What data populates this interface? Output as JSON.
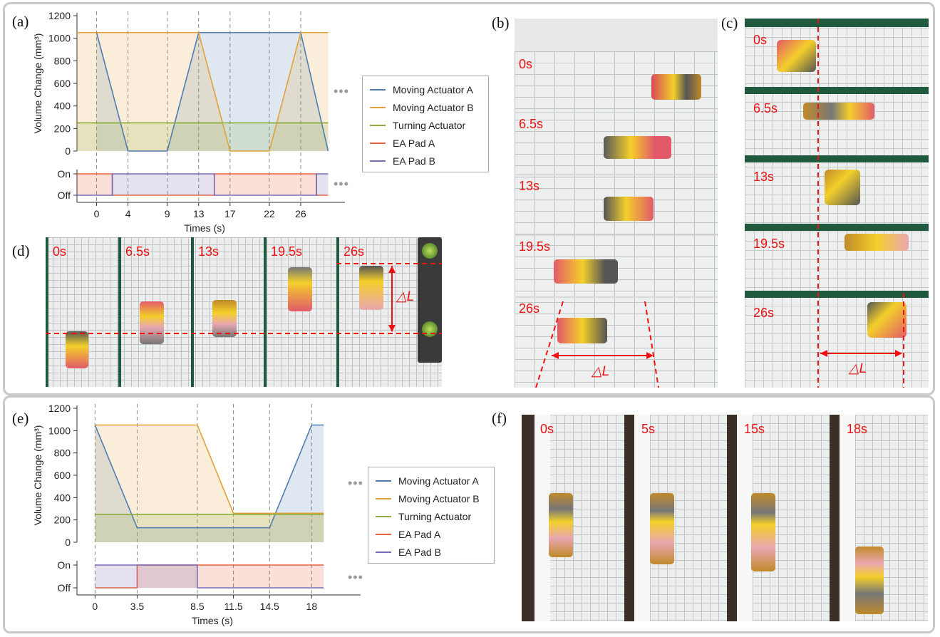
{
  "colors": {
    "moving_a": "#4f7db3",
    "moving_b": "#e2a237",
    "turning": "#8bab3f",
    "pad_a": "#e8633a",
    "pad_b": "#7b6bb5",
    "timestamp": "#e11111",
    "marker": "#e11111"
  },
  "panels": {
    "a": "(a)",
    "b": "(b)",
    "c": "(c)",
    "d": "(d)",
    "e": "(e)",
    "f": "(f)"
  },
  "legend": {
    "items": [
      "Moving Actuator A",
      "Moving Actuator B",
      "Turning Actuator",
      "EA Pad A",
      "EA Pad B"
    ],
    "ellipsis": "•••"
  },
  "photos": {
    "b": {
      "times": [
        "0s",
        "6.5s",
        "13s",
        "19.5s",
        "26s"
      ],
      "delta": "△L"
    },
    "c": {
      "times": [
        "0s",
        "6.5s",
        "13s",
        "19.5s",
        "26s"
      ],
      "delta": "△L"
    },
    "d": {
      "times": [
        "0s",
        "6.5s",
        "13s",
        "19.5s",
        "26s"
      ],
      "delta": "△L"
    },
    "f": {
      "times": [
        "0s",
        "5s",
        "15s",
        "18s"
      ]
    }
  },
  "chart_data": [
    {
      "id": "a",
      "type": "line",
      "ylabel": "Volume Change (mm³)",
      "xlabel": "Times (s)",
      "xticks": [
        0,
        4,
        9,
        13,
        17,
        22,
        26
      ],
      "xlim": [
        -2.5,
        30
      ],
      "ylim": [
        0,
        1200
      ],
      "yticks": [
        0,
        200,
        400,
        600,
        800,
        1000,
        1200
      ],
      "series": [
        {
          "name": "Moving Actuator A",
          "x": [
            0,
            4,
            9,
            13,
            26,
            29.5
          ],
          "y": [
            1050,
            0,
            0,
            1050,
            1050,
            0
          ]
        },
        {
          "name": "Moving Actuator B",
          "x": [
            -2.5,
            13,
            17,
            22,
            26,
            29.5
          ],
          "y": [
            1050,
            1050,
            0,
            0,
            1050,
            1050
          ]
        },
        {
          "name": "Turning Actuator",
          "x": [
            -2.5,
            29.5
          ],
          "y": [
            250,
            250
          ]
        }
      ],
      "pads": {
        "ticks": [
          "On",
          "Off"
        ],
        "pad_a": {
          "x": [
            -2.5,
            2,
            2,
            15,
            15,
            28,
            28,
            29.5
          ],
          "state": [
            1,
            1,
            0,
            0,
            1,
            1,
            0,
            0
          ]
        },
        "pad_b": {
          "x": [
            -2.5,
            2,
            2,
            15,
            15,
            28,
            28,
            29.5
          ],
          "state": [
            0,
            0,
            1,
            1,
            0,
            0,
            1,
            1
          ]
        }
      }
    },
    {
      "id": "e",
      "type": "line",
      "ylabel": "Volume Change (mm³)",
      "xlabel": "Times (s)",
      "xticks": [
        "0",
        "3.5",
        "8.5",
        "11.5",
        "14.5",
        "18"
      ],
      "xticks_num": [
        0,
        3.5,
        8.5,
        11.5,
        14.5,
        18
      ],
      "xlim": [
        -1.5,
        21
      ],
      "ylim": [
        0,
        1200
      ],
      "yticks": [
        0,
        200,
        400,
        600,
        800,
        1000,
        1200
      ],
      "series": [
        {
          "name": "Moving Actuator A",
          "x": [
            0,
            3.5,
            14.5,
            18,
            19
          ],
          "y": [
            1050,
            130,
            130,
            1050,
            1050
          ]
        },
        {
          "name": "Moving Actuator B",
          "x": [
            0,
            8.5,
            11.5,
            19
          ],
          "y": [
            1050,
            1050,
            260,
            260
          ]
        },
        {
          "name": "Turning Actuator",
          "x": [
            0,
            19
          ],
          "y": [
            250,
            250
          ]
        }
      ],
      "pads": {
        "ticks": [
          "On",
          "Off"
        ],
        "pad_a": {
          "x": [
            0,
            3.5,
            3.5,
            19
          ],
          "state": [
            0,
            0,
            1,
            1
          ]
        },
        "pad_b": {
          "x": [
            0,
            8.5,
            8.5,
            19
          ],
          "state": [
            1,
            1,
            0,
            0
          ]
        }
      }
    }
  ]
}
